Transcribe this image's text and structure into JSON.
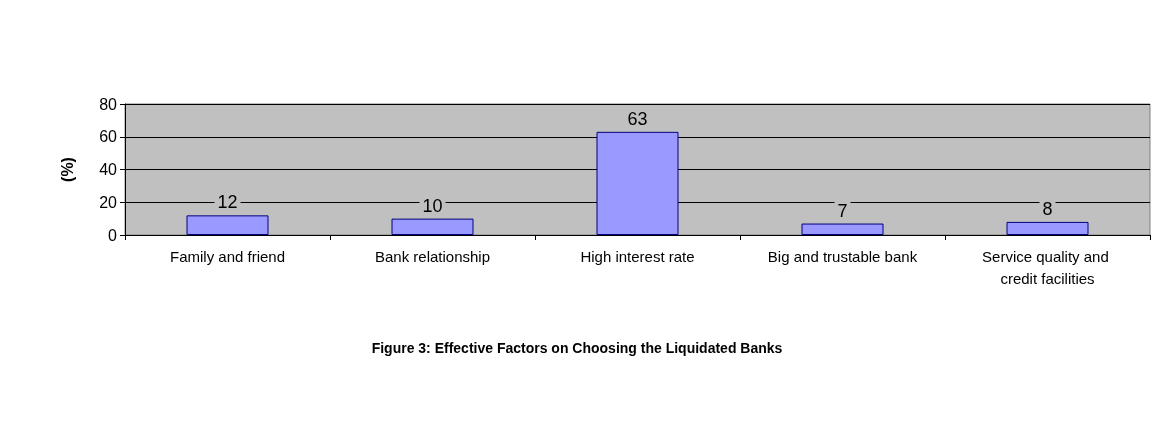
{
  "chart_data": {
    "type": "bar",
    "title": "Figure 3: Effective Factors on Choosing the Liquidated Banks",
    "ylabel": "(%)",
    "categories": [
      "Family and friend",
      "Bank relationship",
      "High interest rate",
      "Big and trustable bank",
      "Service quality and credit facilities"
    ],
    "values": [
      12,
      10,
      63,
      7,
      8
    ],
    "color": "#9999ff",
    "ylim": [
      0,
      80
    ],
    "yticks": [
      0,
      20,
      40,
      60,
      80
    ],
    "grid": "y",
    "data_labels": true
  }
}
